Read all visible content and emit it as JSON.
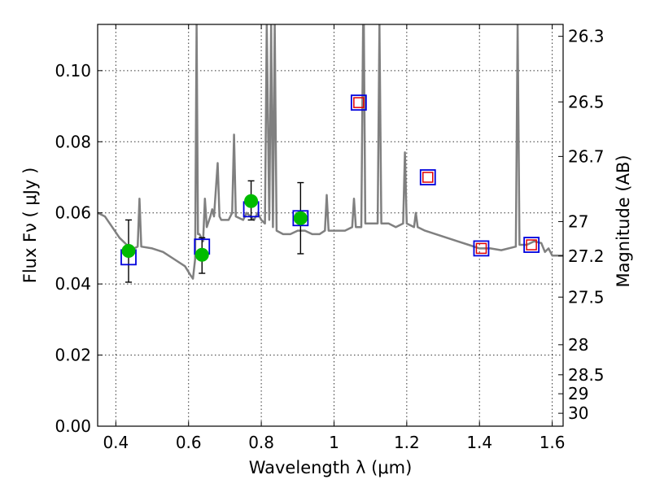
{
  "chart_data": {
    "type": "scatter",
    "xlabel": "Wavelength  λ (μm)",
    "ylabel": "Flux  Fν  ( μJy )",
    "ylabel_right": "Magnitude (AB)",
    "xlim": [
      0.35,
      1.63
    ],
    "ylim": [
      0.0,
      0.113
    ],
    "grid": true,
    "x_ticks": [
      {
        "value": 0.4,
        "label": "0.4"
      },
      {
        "value": 0.6,
        "label": "0.6"
      },
      {
        "value": 0.8,
        "label": "0.8"
      },
      {
        "value": 1.0,
        "label": "1"
      },
      {
        "value": 1.2,
        "label": "1.2"
      },
      {
        "value": 1.4,
        "label": "1.4"
      },
      {
        "value": 1.6,
        "label": "1.6"
      }
    ],
    "y_ticks": [
      {
        "value": 0.0,
        "label": "0.00"
      },
      {
        "value": 0.02,
        "label": "0.02"
      },
      {
        "value": 0.04,
        "label": "0.04"
      },
      {
        "value": 0.06,
        "label": "0.06"
      },
      {
        "value": 0.08,
        "label": "0.08"
      },
      {
        "value": 0.1,
        "label": "0.10"
      }
    ],
    "mag_ticks": [
      {
        "mag": 26.3,
        "label": "26.3"
      },
      {
        "mag": 26.5,
        "label": "26.5"
      },
      {
        "mag": 26.7,
        "label": "26.7"
      },
      {
        "mag": 27.0,
        "label": "27"
      },
      {
        "mag": 27.2,
        "label": "27.2"
      },
      {
        "mag": 27.5,
        "label": "27.5"
      },
      {
        "mag": 28.0,
        "label": "28"
      },
      {
        "mag": 28.5,
        "label": "28.5"
      },
      {
        "mag": 29.0,
        "label": "29"
      },
      {
        "mag": 30.0,
        "label": "30"
      }
    ],
    "series": [
      {
        "kind": "line",
        "color": "#808080",
        "points": [
          [
            0.35,
            0.06
          ],
          [
            0.37,
            0.059
          ],
          [
            0.39,
            0.056
          ],
          [
            0.41,
            0.053
          ],
          [
            0.43,
            0.051
          ],
          [
            0.45,
            0.05
          ],
          [
            0.46,
            0.0505
          ],
          [
            0.465,
            0.064
          ],
          [
            0.47,
            0.0505
          ],
          [
            0.5,
            0.05
          ],
          [
            0.53,
            0.049
          ],
          [
            0.56,
            0.047
          ],
          [
            0.59,
            0.045
          ],
          [
            0.605,
            0.0425
          ],
          [
            0.612,
            0.0415
          ],
          [
            0.618,
            0.047
          ],
          [
            0.622,
            0.113
          ],
          [
            0.626,
            0.054
          ],
          [
            0.63,
            0.054
          ],
          [
            0.64,
            0.052
          ],
          [
            0.645,
            0.064
          ],
          [
            0.65,
            0.056
          ],
          [
            0.66,
            0.059
          ],
          [
            0.665,
            0.061
          ],
          [
            0.67,
            0.059
          ],
          [
            0.68,
            0.074
          ],
          [
            0.685,
            0.059
          ],
          [
            0.69,
            0.058
          ],
          [
            0.71,
            0.058
          ],
          [
            0.72,
            0.06
          ],
          [
            0.725,
            0.082
          ],
          [
            0.73,
            0.059
          ],
          [
            0.75,
            0.058
          ],
          [
            0.76,
            0.06
          ],
          [
            0.77,
            0.059
          ],
          [
            0.78,
            0.058
          ],
          [
            0.79,
            0.06
          ],
          [
            0.8,
            0.058
          ],
          [
            0.81,
            0.057
          ],
          [
            0.815,
            0.113
          ],
          [
            0.822,
            0.058
          ],
          [
            0.827,
            0.113
          ],
          [
            0.832,
            0.056
          ],
          [
            0.837,
            0.113
          ],
          [
            0.842,
            0.055
          ],
          [
            0.86,
            0.054
          ],
          [
            0.88,
            0.054
          ],
          [
            0.9,
            0.055
          ],
          [
            0.92,
            0.055
          ],
          [
            0.94,
            0.054
          ],
          [
            0.96,
            0.054
          ],
          [
            0.975,
            0.055
          ],
          [
            0.98,
            0.065
          ],
          [
            0.985,
            0.055
          ],
          [
            1.0,
            0.055
          ],
          [
            1.03,
            0.055
          ],
          [
            1.05,
            0.056
          ],
          [
            1.055,
            0.064
          ],
          [
            1.06,
            0.056
          ],
          [
            1.075,
            0.056
          ],
          [
            1.08,
            0.113
          ],
          [
            1.082,
            0.113
          ],
          [
            1.086,
            0.057
          ],
          [
            1.1,
            0.057
          ],
          [
            1.12,
            0.057
          ],
          [
            1.125,
            0.113
          ],
          [
            1.13,
            0.057
          ],
          [
            1.15,
            0.057
          ],
          [
            1.17,
            0.056
          ],
          [
            1.19,
            0.057
          ],
          [
            1.195,
            0.077
          ],
          [
            1.2,
            0.057
          ],
          [
            1.22,
            0.056
          ],
          [
            1.225,
            0.06
          ],
          [
            1.23,
            0.056
          ],
          [
            1.25,
            0.055
          ],
          [
            1.28,
            0.054
          ],
          [
            1.31,
            0.053
          ],
          [
            1.34,
            0.052
          ],
          [
            1.37,
            0.051
          ],
          [
            1.4,
            0.05
          ],
          [
            1.43,
            0.05
          ],
          [
            1.46,
            0.0495
          ],
          [
            1.5,
            0.0505
          ],
          [
            1.505,
            0.113
          ],
          [
            1.51,
            0.051
          ],
          [
            1.53,
            0.051
          ],
          [
            1.55,
            0.052
          ],
          [
            1.57,
            0.0515
          ],
          [
            1.58,
            0.049
          ],
          [
            1.59,
            0.05
          ],
          [
            1.6,
            0.048
          ],
          [
            1.63,
            0.048
          ]
        ]
      },
      {
        "kind": "blue-squares",
        "color": "#0000dd",
        "points": [
          [
            0.435,
            0.0475
          ],
          [
            0.637,
            0.0505
          ],
          [
            0.772,
            0.061
          ],
          [
            0.908,
            0.0585
          ],
          [
            1.068,
            0.091
          ],
          [
            1.258,
            0.07
          ],
          [
            1.405,
            0.05
          ],
          [
            1.543,
            0.051
          ]
        ]
      },
      {
        "kind": "red-squares",
        "color": "#e00000",
        "points": [
          [
            1.068,
            0.091
          ],
          [
            1.258,
            0.07
          ],
          [
            1.405,
            0.05
          ],
          [
            1.543,
            0.051
          ]
        ]
      },
      {
        "kind": "green-points",
        "color": "#00bb00",
        "points": [
          {
            "x": 0.435,
            "y": 0.0493,
            "lo": 0.0405,
            "hi": 0.058
          },
          {
            "x": 0.637,
            "y": 0.0482,
            "lo": 0.043,
            "hi": 0.053
          },
          {
            "x": 0.772,
            "y": 0.0633,
            "lo": 0.058,
            "hi": 0.069
          },
          {
            "x": 0.908,
            "y": 0.0585,
            "lo": 0.0485,
            "hi": 0.0685
          }
        ]
      }
    ]
  }
}
